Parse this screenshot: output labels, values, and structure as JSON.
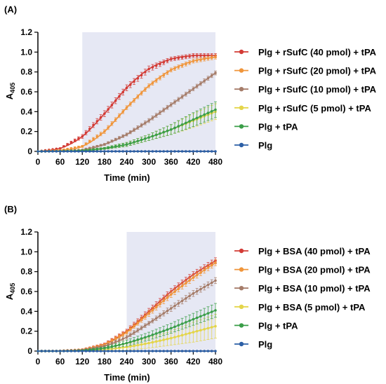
{
  "chart_data": [
    {
      "type": "line",
      "panel_label": "(A)",
      "xlabel": "Time (min)",
      "ylabel_main": "A",
      "ylabel_sub": "405",
      "xlim": [
        0,
        480
      ],
      "ylim": [
        0,
        1.2
      ],
      "xticks": [
        0,
        60,
        120,
        180,
        240,
        300,
        360,
        420,
        480
      ],
      "yticks": [
        0,
        0.2,
        0.4,
        0.6,
        0.8,
        1.0,
        1.2
      ],
      "ytick_labels": [
        "0",
        "0.2",
        "0.4",
        "0.6",
        "0.8",
        "1.0",
        "1.2"
      ],
      "shaded_region": [
        120,
        480
      ],
      "shade_color": "#e6e8f4",
      "x": [
        0,
        60,
        120,
        180,
        240,
        300,
        360,
        420,
        480
      ],
      "series": [
        {
          "name": "Plg + rSufC (40 pmol) + tPA",
          "color": "#d33b35",
          "values": [
            0.0,
            0.03,
            0.15,
            0.38,
            0.64,
            0.83,
            0.93,
            0.965,
            0.965
          ],
          "error": [
            0.0,
            0.005,
            0.02,
            0.03,
            0.03,
            0.03,
            0.02,
            0.02,
            0.02
          ]
        },
        {
          "name": "Plg + rSufC (20 pmol) + tPA",
          "color": "#f0953a",
          "values": [
            0.0,
            0.01,
            0.05,
            0.2,
            0.44,
            0.66,
            0.82,
            0.91,
            0.95
          ],
          "error": [
            0.0,
            0.005,
            0.01,
            0.02,
            0.02,
            0.02,
            0.02,
            0.02,
            0.02
          ]
        },
        {
          "name": "Plg + rSufC (10 pmol) + tPA",
          "color": "#a57c69",
          "values": [
            0.0,
            0.003,
            0.015,
            0.07,
            0.17,
            0.31,
            0.47,
            0.63,
            0.79
          ],
          "error": [
            0.0,
            0.003,
            0.005,
            0.01,
            0.015,
            0.02,
            0.02,
            0.02,
            0.02
          ]
        },
        {
          "name": "Plg + rSufC (5 pmol) + tPA",
          "color": "#e4d54a",
          "values": [
            0.0,
            0.002,
            0.008,
            0.03,
            0.07,
            0.14,
            0.22,
            0.31,
            0.4
          ],
          "error": [
            0.0,
            0.002,
            0.005,
            0.01,
            0.02,
            0.03,
            0.05,
            0.07,
            0.08
          ]
        },
        {
          "name": "Plg + tPA",
          "color": "#3a9e48",
          "values": [
            0.0,
            0.002,
            0.008,
            0.03,
            0.07,
            0.14,
            0.22,
            0.32,
            0.42
          ],
          "error": [
            0.0,
            0.002,
            0.005,
            0.01,
            0.02,
            0.03,
            0.05,
            0.07,
            0.08
          ]
        },
        {
          "name": "Plg",
          "color": "#2c5fa6",
          "values": [
            0.0,
            0.0,
            0.0,
            0.0,
            0.0,
            0.0,
            0.0,
            0.0,
            0.0
          ],
          "error": [
            0,
            0,
            0,
            0,
            0,
            0,
            0,
            0,
            0
          ]
        }
      ]
    },
    {
      "type": "line",
      "panel_label": "(B)",
      "xlabel": "Time (min)",
      "ylabel_main": "A",
      "ylabel_sub": "405",
      "xlim": [
        0,
        480
      ],
      "ylim": [
        0,
        1.2
      ],
      "xticks": [
        0,
        60,
        120,
        180,
        240,
        300,
        360,
        420,
        480
      ],
      "yticks": [
        0,
        0.2,
        0.4,
        0.6,
        0.8,
        1.0,
        1.2
      ],
      "ytick_labels": [
        "0",
        "0.2",
        "0.4",
        "0.6",
        "0.8",
        "1.0",
        "1.2"
      ],
      "shaded_region": [
        240,
        480
      ],
      "shade_color": "#e6e8f4",
      "x": [
        0,
        60,
        120,
        180,
        240,
        300,
        360,
        420,
        480
      ],
      "series": [
        {
          "name": "Plg + BSA (40 pmol) + tPA",
          "color": "#d33b35",
          "values": [
            0.0,
            0.002,
            0.015,
            0.07,
            0.2,
            0.4,
            0.6,
            0.77,
            0.91
          ],
          "error": [
            0.0,
            0.002,
            0.005,
            0.01,
            0.02,
            0.03,
            0.03,
            0.03,
            0.03
          ]
        },
        {
          "name": "Plg + BSA (20 pmol) + tPA",
          "color": "#f0953a",
          "values": [
            0.0,
            0.002,
            0.014,
            0.065,
            0.19,
            0.38,
            0.57,
            0.74,
            0.89
          ],
          "error": [
            0.0,
            0.002,
            0.005,
            0.01,
            0.02,
            0.03,
            0.03,
            0.03,
            0.03
          ]
        },
        {
          "name": "Plg + BSA (10 pmol) + tPA",
          "color": "#a57c69",
          "values": [
            0.0,
            0.001,
            0.01,
            0.05,
            0.14,
            0.28,
            0.43,
            0.58,
            0.71
          ],
          "error": [
            0.0,
            0.002,
            0.005,
            0.01,
            0.02,
            0.02,
            0.03,
            0.03,
            0.03
          ]
        },
        {
          "name": "Plg + BSA (5 pmol) + tPA",
          "color": "#e4d54a",
          "values": [
            0.0,
            0.0,
            0.003,
            0.015,
            0.04,
            0.08,
            0.13,
            0.19,
            0.25
          ],
          "error": [
            0.0,
            0.001,
            0.003,
            0.01,
            0.03,
            0.05,
            0.07,
            0.1,
            0.12
          ]
        },
        {
          "name": "Plg + tPA",
          "color": "#3a9e48",
          "values": [
            0.0,
            0.0,
            0.005,
            0.03,
            0.08,
            0.15,
            0.23,
            0.32,
            0.41
          ],
          "error": [
            0.0,
            0.001,
            0.005,
            0.01,
            0.03,
            0.04,
            0.05,
            0.06,
            0.07
          ]
        },
        {
          "name": "Plg",
          "color": "#2c5fa6",
          "values": [
            0.0,
            0.0,
            0.0,
            0.0,
            0.0,
            0.0,
            0.0,
            0.0,
            0.0
          ],
          "error": [
            0,
            0,
            0,
            0,
            0,
            0,
            0,
            0,
            0
          ]
        }
      ]
    }
  ]
}
